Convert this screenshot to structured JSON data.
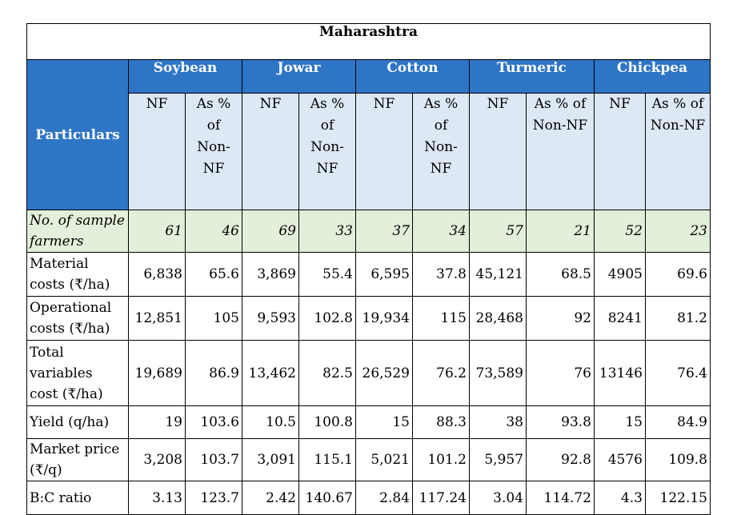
{
  "title": "Maharashtra",
  "particulars_label": "Particulars",
  "crops": [
    "Soybean",
    "Jowar",
    "Cotton",
    "Turmeric",
    "Chickpea"
  ],
  "subheaders": [
    {
      "nf": "NF",
      "pct_lines": [
        "As % of",
        "Non-",
        "NF"
      ]
    },
    {
      "nf": "NF",
      "pct_lines": [
        "As % of",
        "Non-",
        "NF"
      ]
    },
    {
      "nf": "NF",
      "pct_lines": [
        "As % of",
        "Non-",
        "NF"
      ]
    },
    {
      "nf": "NF",
      "pct_lines": [
        "As % of",
        "Non-NF"
      ]
    },
    {
      "nf": "NF",
      "pct_lines": [
        "As % of",
        "Non-NF"
      ]
    }
  ],
  "rows": [
    {
      "label_lines": [
        "No. of sample",
        "farmers"
      ],
      "values": [
        "61",
        "46",
        "69",
        "33",
        "37",
        "34",
        "57",
        "21",
        "52",
        "23"
      ]
    },
    {
      "label_lines": [
        "Material",
        "costs (₹/ha)"
      ],
      "values": [
        "6,838",
        "65.6",
        "3,869",
        "55.4",
        "6,595",
        "37.8",
        "45,121",
        "68.5",
        "4905",
        "69.6"
      ]
    },
    {
      "label_lines": [
        "Operational",
        "costs (₹/ha)"
      ],
      "values": [
        "12,851",
        "105",
        "9,593",
        "102.8",
        "19,934",
        "115",
        "28,468",
        "92",
        "8241",
        "81.2"
      ]
    },
    {
      "label_lines": [
        "Total",
        "variables",
        "cost (₹/ha)"
      ],
      "values": [
        "19,689",
        "86.9",
        "13,462",
        "82.5",
        "26,529",
        "76.2",
        "73,589",
        "76",
        "13146",
        "76.4"
      ]
    },
    {
      "label_lines": [
        "Yield (q/ha)"
      ],
      "values": [
        "19",
        "103.6",
        "10.5",
        "100.8",
        "15",
        "88.3",
        "38",
        "93.8",
        "15",
        "84.9"
      ]
    },
    {
      "label_lines": [
        "Market price",
        "(₹/q)"
      ],
      "values": [
        "3,208",
        "103.7",
        "3,091",
        "115.1",
        "5,021",
        "101.2",
        "5,957",
        "92.8",
        "4576",
        "109.8"
      ]
    },
    {
      "label_lines": [
        "B:C ratio"
      ],
      "values": [
        "3.13",
        "123.7",
        "2.42",
        "140.67",
        "2.84",
        "117.24",
        "3.04",
        "114.72",
        "4.3",
        "122.15"
      ]
    }
  ],
  "colors": {
    "header_blue": "#2e75c6",
    "subheader_blue": "#dde8f5",
    "sample_row_green": "#e2efda"
  }
}
